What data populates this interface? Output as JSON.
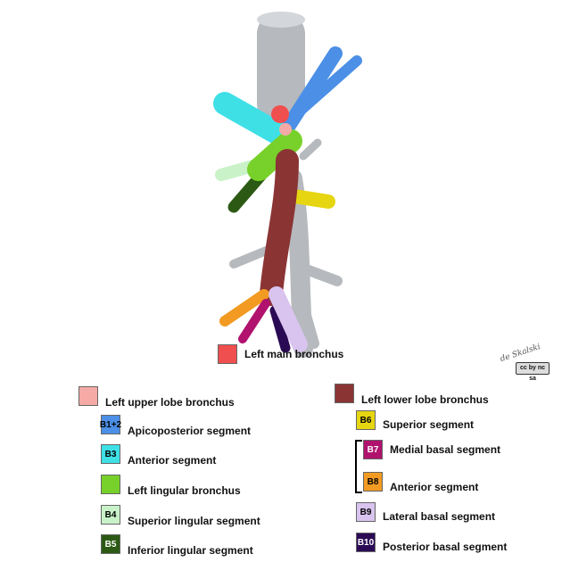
{
  "colors": {
    "trachea": "#b6b9bd",
    "main": "#f04f4f",
    "upper_lobe": "#f6aaa6",
    "b12": "#4b8fe6",
    "b3": "#3ee0e6",
    "lingular": "#77d12a",
    "b4": "#c9f2c9",
    "b5": "#2c5a14",
    "lower_lobe": "#8b3434",
    "b6": "#e6d611",
    "b7": "#b0126e",
    "b8": "#f29a22",
    "b9": "#d8c4ee",
    "b10": "#2b0a55"
  },
  "legend": {
    "main": {
      "label": "Left main bronchus"
    },
    "upper_lobe": {
      "label": "Left upper lobe bronchus"
    },
    "b12": {
      "code": "B1+2",
      "label": "Apicoposterior segment"
    },
    "b3": {
      "code": "B3",
      "label": "Anterior segment"
    },
    "lingular": {
      "label": "Left lingular bronchus"
    },
    "b4": {
      "code": "B4",
      "label": "Superior lingular segment"
    },
    "b5": {
      "code": "B5",
      "label": "Inferior lingular segment"
    },
    "lower_lobe": {
      "label": "Left lower lobe bronchus"
    },
    "b6": {
      "code": "B6",
      "label": "Superior segment"
    },
    "b7": {
      "code": "B7",
      "label": "Medial basal segment"
    },
    "b8": {
      "code": "B8",
      "label": "Anterior segment"
    },
    "b9": {
      "code": "B9",
      "label": "Lateral basal segment"
    },
    "b10": {
      "code": "B10",
      "label": "Posterior basal segment"
    }
  },
  "signature": "de Skalski",
  "license_badge": "cc by nc sa"
}
